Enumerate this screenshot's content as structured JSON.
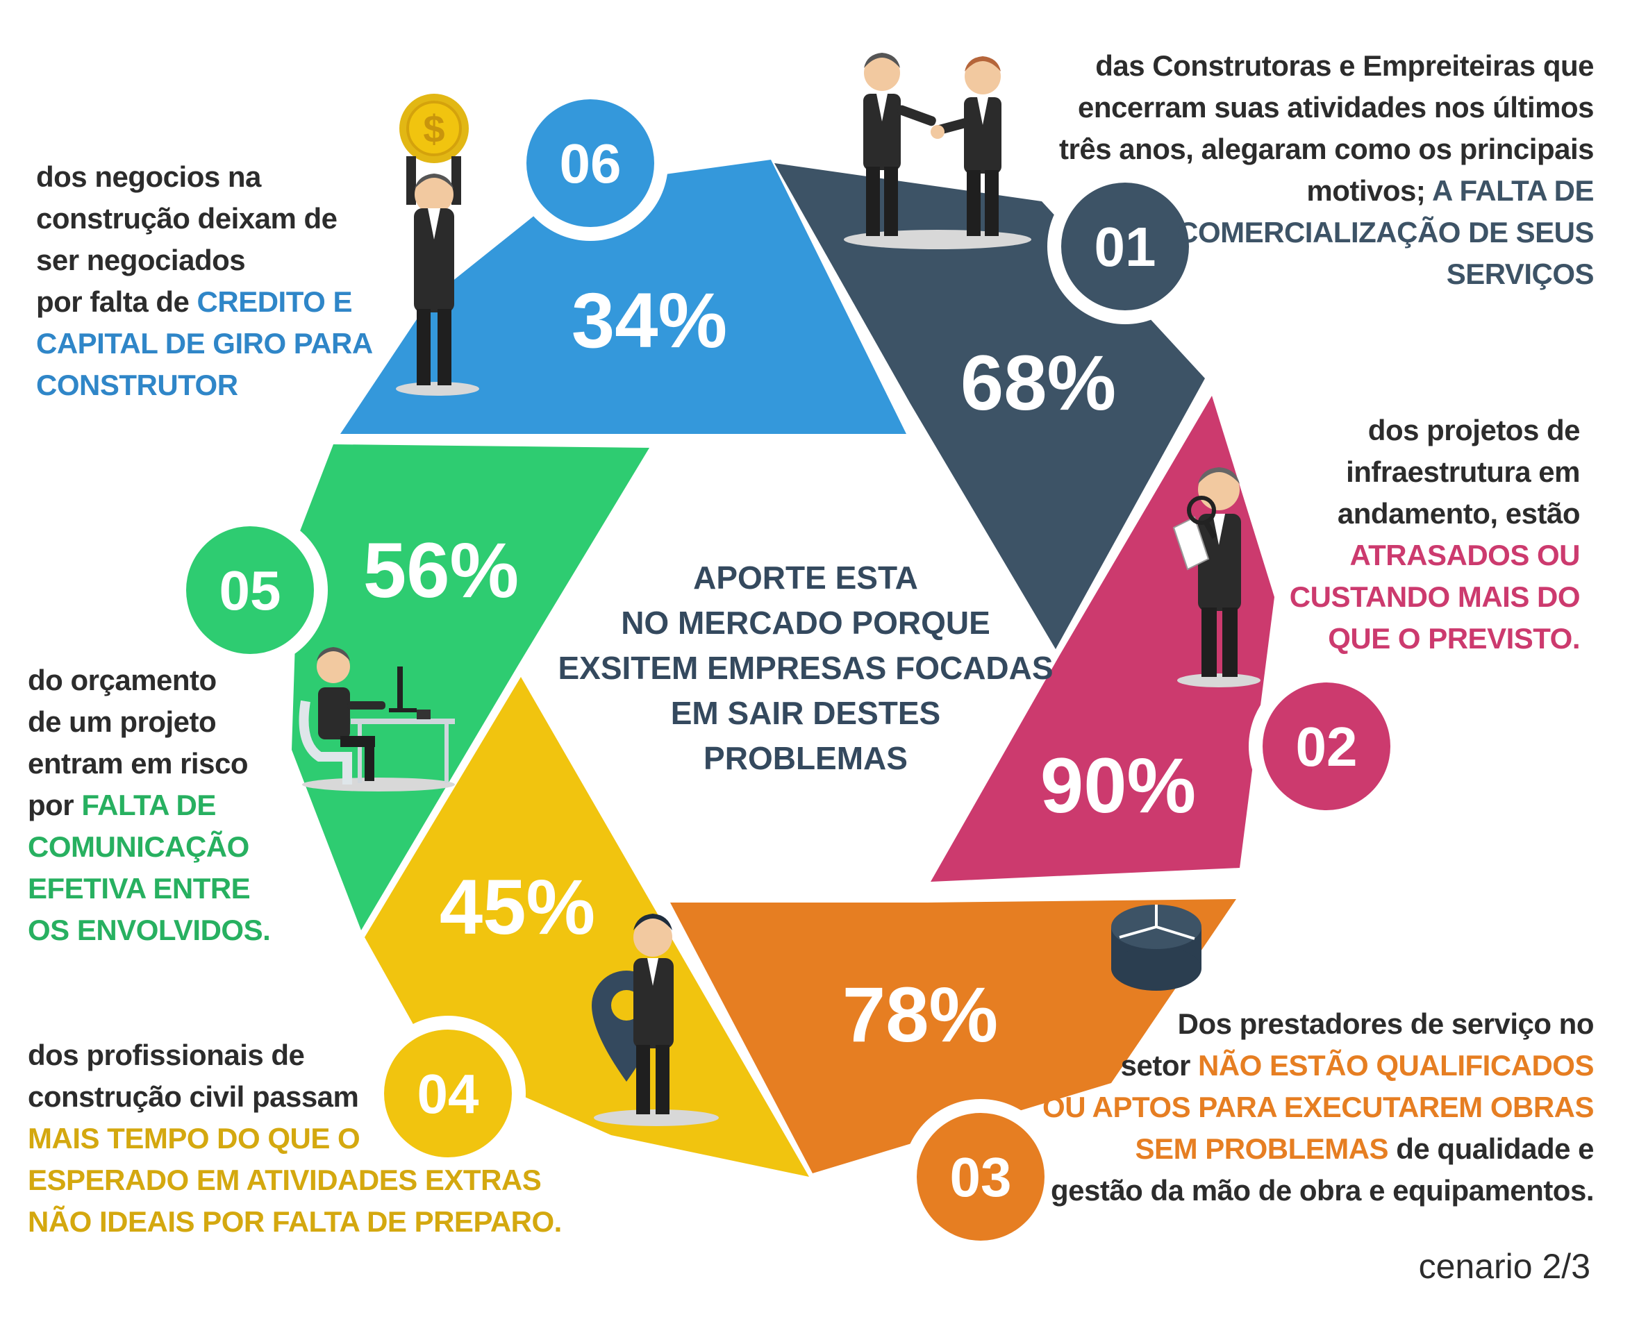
{
  "center": {
    "lines": [
      "APORTE ESTA",
      "NO MERCADO PORQUE",
      "EXSITEM EMPRESAS FOCADAS",
      "EM SAIR DESTES",
      "PROBLEMAS"
    ]
  },
  "segments": [
    {
      "num": "01",
      "value": "68%",
      "color": "#3d5366"
    },
    {
      "num": "02",
      "value": "90%",
      "color": "#cc3a6e"
    },
    {
      "num": "03",
      "value": "78%",
      "color": "#e67e22"
    },
    {
      "num": "04",
      "value": "45%",
      "color": "#f1c40f"
    },
    {
      "num": "05",
      "value": "56%",
      "color": "#2ecc71"
    },
    {
      "num": "06",
      "value": "34%",
      "color": "#3498db"
    }
  ],
  "descriptions": {
    "d01": {
      "l1": "das Construtoras e Empreiteiras que",
      "l2": "encerram suas atividades nos últimos",
      "l3": "três anos, alegaram como os principais",
      "l4a": "motivos; ",
      "l4b": "A FALTA DE",
      "l5": "COMERCIALIZAÇÃO DE SEUS",
      "l6": "SERVIÇOS"
    },
    "d02": {
      "l1": "dos projetos de",
      "l2": "infraestrutura em",
      "l3": "andamento, estão",
      "l4": "ATRASADOS OU",
      "l5": "CUSTANDO MAIS DO",
      "l6": "QUE O PREVISTO."
    },
    "d03": {
      "l1": "Dos prestadores de serviço no",
      "l2a": "setor ",
      "l2b": "NÃO ESTÃO QUALIFICADOS",
      "l3": "OU APTOS PARA EXECUTAREM OBRAS",
      "l4a": "SEM PROBLEMAS",
      "l4b": " de qualidade e",
      "l5": "gestão da mão de obra e equipamentos."
    },
    "d04": {
      "l1": "dos profissionais de",
      "l2": "construção civil passam",
      "l3": "MAIS TEMPO DO QUE O",
      "l4": "ESPERADO EM ATIVIDADES EXTRAS",
      "l5": "NÃO IDEAIS POR FALTA DE PREPARO."
    },
    "d05": {
      "l1": "do orçamento",
      "l2": "de um projeto",
      "l3": "entram em risco",
      "l4a": "por ",
      "l4b": "FALTA DE",
      "l5": "COMUNICAÇÃO",
      "l6": "EFETIVA ENTRE",
      "l7": "OS ENVOLVIDOS."
    },
    "d06": {
      "l1": "dos negocios na",
      "l2": "construção deixam de",
      "l3": "ser negociados",
      "l4a": "por falta de ",
      "l4b": "CREDITO E",
      "l5": "CAPITAL DE GIRO PARA",
      "l6": "CONSTRUTOR"
    }
  },
  "icons": [
    "handshake-icon",
    "magnifier-person-icon",
    "pie-chart-icon",
    "location-pin-person-icon",
    "desk-worker-icon",
    "coin-person-icon"
  ],
  "footer": "cenario 2/3"
}
